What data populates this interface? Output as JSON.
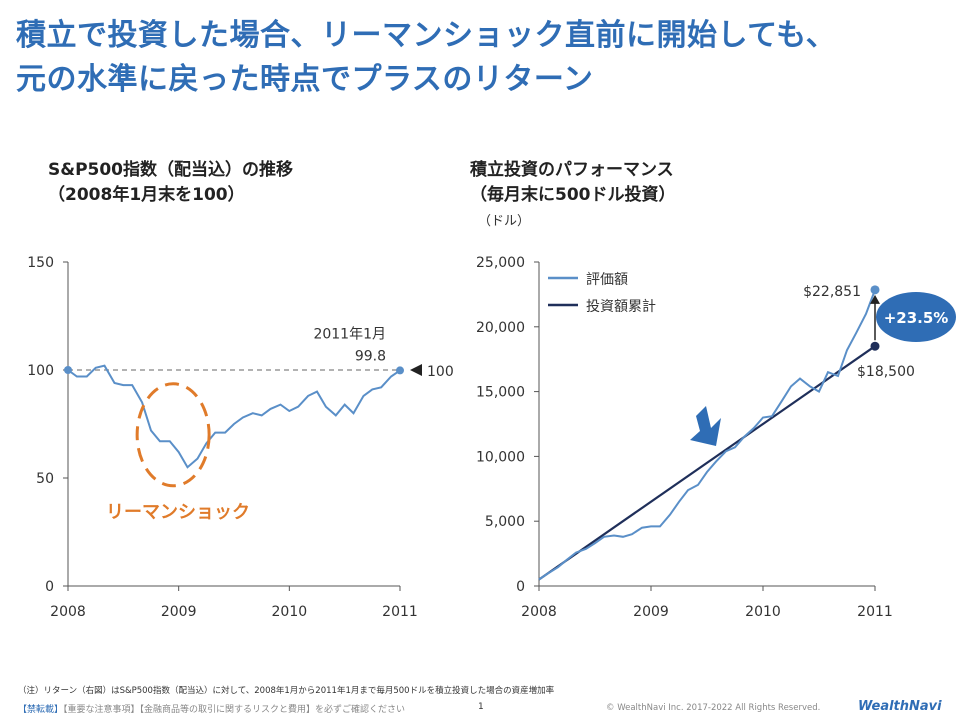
{
  "headline": {
    "line1": "積立で投資した場合、リーマンショック直前に開始しても、",
    "line2": "元の水準に戻った時点でプラスのリターン"
  },
  "chart_data": [
    {
      "type": "line",
      "title_line1": "S&P500指数（配当込）の推移",
      "title_line2": "（2008年1月末を100）",
      "xlabel": "",
      "ylabel": "",
      "x_ticks": [
        "2008",
        "2009",
        "2010",
        "2011"
      ],
      "y_ticks": [
        0,
        50,
        100,
        150
      ],
      "ylim": [
        0,
        150
      ],
      "xlim": [
        2008.0,
        2011.0
      ],
      "reference_line": 100,
      "reference_label": "100",
      "end_annotation_date": "2011年1月",
      "end_annotation_value": "99.8",
      "circle_label": "リーマンショック",
      "colors": {
        "line": "#5a8fc8",
        "circle": "#e07b2a",
        "reference": "#999999"
      },
      "series": [
        {
          "x": [
            2008.0,
            2008.08,
            2008.17,
            2008.25,
            2008.33,
            2008.42,
            2008.5,
            2008.58,
            2008.67,
            2008.75,
            2008.83,
            2008.92,
            2009.0,
            2009.08,
            2009.17,
            2009.25,
            2009.33,
            2009.42,
            2009.5,
            2009.58,
            2009.67,
            2009.75,
            2009.83,
            2009.92,
            2010.0,
            2010.08,
            2010.17,
            2010.25,
            2010.33,
            2010.42,
            2010.5,
            2010.58,
            2010.67,
            2010.75,
            2010.83,
            2010.92,
            2011.0
          ],
          "y": [
            100,
            97,
            97,
            101,
            102,
            94,
            93,
            93,
            85,
            72,
            67,
            67,
            62,
            55,
            59,
            66,
            71,
            71,
            75,
            78,
            80,
            79,
            82,
            84,
            81,
            83,
            88,
            90,
            83,
            79,
            84,
            80,
            88,
            91,
            92,
            97,
            99.8
          ]
        }
      ]
    },
    {
      "type": "line",
      "title_line1": "積立投資のパフォーマンス",
      "title_line2": "（毎月末に500ドル投資）",
      "ylabel": "（ドル）",
      "xlabel": "",
      "x_ticks": [
        "2008",
        "2009",
        "2010",
        "2011"
      ],
      "y_ticks": [
        "0",
        "5,000",
        "10,000",
        "15,000",
        "20,000",
        "25,000"
      ],
      "ylim": [
        0,
        25000
      ],
      "xlim": [
        2008.0,
        2011.0
      ],
      "final_value_label": "$22,851",
      "final_cost_label": "$18,500",
      "return_label": "+23.5%",
      "colors": {
        "value": "#5a8fc8",
        "cost": "#1f2f5a",
        "badge": "#2f6db5",
        "arrow": "#2f6db5"
      },
      "series": [
        {
          "name": "評価額",
          "x": [
            2008.0,
            2008.08,
            2008.17,
            2008.25,
            2008.33,
            2008.42,
            2008.5,
            2008.58,
            2008.67,
            2008.75,
            2008.83,
            2008.92,
            2009.0,
            2009.08,
            2009.17,
            2009.25,
            2009.33,
            2009.42,
            2009.5,
            2009.58,
            2009.67,
            2009.75,
            2009.83,
            2009.92,
            2010.0,
            2010.08,
            2010.17,
            2010.25,
            2010.33,
            2010.42,
            2010.5,
            2010.58,
            2010.67,
            2010.75,
            2010.83,
            2010.92,
            2011.0
          ],
          "y": [
            500,
            970,
            1450,
            2030,
            2580,
            2870,
            3300,
            3800,
            3900,
            3800,
            4000,
            4500,
            4600,
            4600,
            5500,
            6500,
            7400,
            7800,
            8800,
            9600,
            10400,
            10700,
            11500,
            12200,
            13000,
            13100,
            14300,
            15400,
            16000,
            15400,
            15000,
            16500,
            16200,
            18200,
            19500,
            21000,
            22851
          ]
        },
        {
          "name": "投資額累計",
          "x": [
            2008.0,
            2011.0
          ],
          "y": [
            500,
            18500
          ]
        }
      ]
    }
  ],
  "note": "（注）リターン（右図）はS&P500指数（配当込）に対して、2008年1月から2011年1月まで毎月500ドルを積立投資した場合の資産増加率",
  "footer": {
    "disclaimer_lead": "【禁転載】",
    "disclaimer_rest": "【重要な注意事項】【金融商品等の取引に関するリスクと費用】を必ずご確認ください",
    "page": "1",
    "copyright": "© WealthNavi Inc. 2017-2022 All Rights Reserved.",
    "brand": "WealthNavi"
  }
}
